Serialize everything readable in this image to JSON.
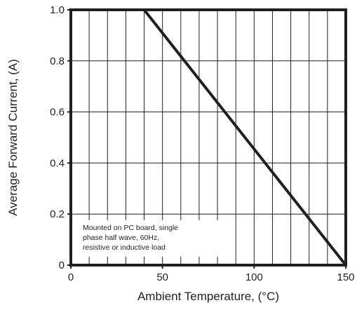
{
  "chart_data": {
    "type": "line",
    "title": "",
    "xlabel": "Ambient Temperature, (°C)",
    "ylabel": "Average Forward Current, (A)",
    "xlim": [
      0,
      150
    ],
    "ylim": [
      0,
      1.0
    ],
    "grid": true,
    "x_minor_grid_step": 10,
    "y_grid_step": 0.2,
    "x_ticks": [
      {
        "value": 0,
        "label": "0"
      },
      {
        "value": 50,
        "label": "50"
      },
      {
        "value": 100,
        "label": "100"
      },
      {
        "value": 150,
        "label": "150"
      }
    ],
    "y_ticks": [
      {
        "value": 0,
        "label": "0"
      },
      {
        "value": 0.2,
        "label": "0.2"
      },
      {
        "value": 0.4,
        "label": "0.4"
      },
      {
        "value": 0.6,
        "label": "0.6"
      },
      {
        "value": 0.8,
        "label": "0.8"
      },
      {
        "value": 1.0,
        "label": "1.0"
      }
    ],
    "series": [
      {
        "x": [
          0,
          40,
          150
        ],
        "y": [
          1.0,
          1.0,
          0
        ],
        "color": "#231f20"
      }
    ],
    "annotation": {
      "lines": [
        "Mounted on PC board, single",
        "phase half wave, 60Hz,",
        "resistive or inductive load"
      ],
      "placement": "bottom-left"
    }
  }
}
